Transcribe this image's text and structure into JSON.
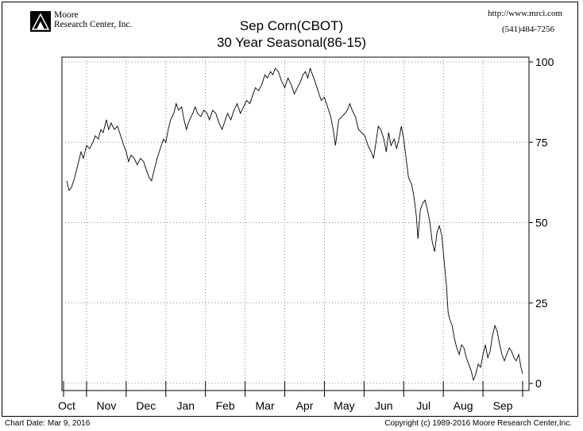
{
  "header": {
    "logo_line1": "Moore",
    "logo_line2": "Research Center, Inc.",
    "url": "http://www.mrci.com",
    "phone": "(541)484-7256"
  },
  "footer": {
    "chart_date": "Chart Date: Mar 9, 2016",
    "copyright": "Copyright (c) 1989-2016 Moore Research Center,Inc."
  },
  "chart_data": {
    "type": "line",
    "title": "Sep Corn(CBOT)",
    "subtitle": "30 Year Seasonal(86-15)",
    "ylim": [
      0,
      100
    ],
    "yticks": [
      0,
      25,
      50,
      75,
      100
    ],
    "grid": true,
    "x_axis": [
      "Oct",
      "Nov",
      "Dec",
      "Jan",
      "Feb",
      "Mar",
      "Apr",
      "May",
      "Jun",
      "Jul",
      "Aug",
      "Sep"
    ],
    "x_range": [
      0,
      11.5
    ],
    "series": [
      {
        "points": [
          [
            0.0,
            63
          ],
          [
            0.06,
            60
          ],
          [
            0.12,
            61
          ],
          [
            0.2,
            64
          ],
          [
            0.28,
            68
          ],
          [
            0.36,
            72
          ],
          [
            0.42,
            70
          ],
          [
            0.5,
            74
          ],
          [
            0.58,
            73
          ],
          [
            0.66,
            75
          ],
          [
            0.72,
            77
          ],
          [
            0.8,
            76
          ],
          [
            0.86,
            79
          ],
          [
            0.92,
            78
          ],
          [
            1.0,
            82
          ],
          [
            1.06,
            79
          ],
          [
            1.12,
            81
          ],
          [
            1.2,
            79
          ],
          [
            1.28,
            80
          ],
          [
            1.36,
            77
          ],
          [
            1.44,
            74
          ],
          [
            1.5,
            72
          ],
          [
            1.56,
            69
          ],
          [
            1.62,
            71
          ],
          [
            1.7,
            70
          ],
          [
            1.78,
            68
          ],
          [
            1.86,
            70
          ],
          [
            1.94,
            69
          ],
          [
            2.02,
            66
          ],
          [
            2.08,
            64
          ],
          [
            2.14,
            63
          ],
          [
            2.2,
            66
          ],
          [
            2.28,
            70
          ],
          [
            2.36,
            73
          ],
          [
            2.44,
            76
          ],
          [
            2.5,
            75
          ],
          [
            2.56,
            79
          ],
          [
            2.62,
            82
          ],
          [
            2.7,
            84
          ],
          [
            2.76,
            87
          ],
          [
            2.82,
            85
          ],
          [
            2.9,
            86
          ],
          [
            2.96,
            82
          ],
          [
            3.02,
            79
          ],
          [
            3.1,
            82
          ],
          [
            3.18,
            84
          ],
          [
            3.24,
            86
          ],
          [
            3.3,
            84
          ],
          [
            3.38,
            83
          ],
          [
            3.46,
            85
          ],
          [
            3.54,
            84
          ],
          [
            3.6,
            82
          ],
          [
            3.68,
            85
          ],
          [
            3.76,
            84
          ],
          [
            3.84,
            81
          ],
          [
            3.92,
            79
          ],
          [
            4.0,
            82
          ],
          [
            4.06,
            84
          ],
          [
            4.14,
            82
          ],
          [
            4.22,
            85
          ],
          [
            4.3,
            87
          ],
          [
            4.38,
            84
          ],
          [
            4.46,
            86
          ],
          [
            4.54,
            88
          ],
          [
            4.62,
            87
          ],
          [
            4.7,
            90
          ],
          [
            4.76,
            92
          ],
          [
            4.84,
            91
          ],
          [
            4.92,
            93
          ],
          [
            5.0,
            96
          ],
          [
            5.06,
            95
          ],
          [
            5.14,
            97
          ],
          [
            5.2,
            96
          ],
          [
            5.26,
            98
          ],
          [
            5.34,
            97
          ],
          [
            5.42,
            94
          ],
          [
            5.5,
            92
          ],
          [
            5.58,
            95
          ],
          [
            5.66,
            93
          ],
          [
            5.74,
            90
          ],
          [
            5.82,
            92
          ],
          [
            5.9,
            94
          ],
          [
            5.96,
            96
          ],
          [
            6.02,
            97
          ],
          [
            6.08,
            95
          ],
          [
            6.14,
            98
          ],
          [
            6.2,
            96
          ],
          [
            6.26,
            94
          ],
          [
            6.34,
            91
          ],
          [
            6.42,
            88
          ],
          [
            6.5,
            89
          ],
          [
            6.58,
            86
          ],
          [
            6.66,
            83
          ],
          [
            6.72,
            79
          ],
          [
            6.78,
            74
          ],
          [
            6.86,
            82
          ],
          [
            6.94,
            83
          ],
          [
            7.02,
            84
          ],
          [
            7.08,
            85
          ],
          [
            7.14,
            87
          ],
          [
            7.2,
            85
          ],
          [
            7.28,
            83
          ],
          [
            7.36,
            79
          ],
          [
            7.44,
            78
          ],
          [
            7.52,
            77
          ],
          [
            7.6,
            74
          ],
          [
            7.68,
            72
          ],
          [
            7.74,
            70
          ],
          [
            7.8,
            75
          ],
          [
            7.86,
            80
          ],
          [
            7.92,
            79
          ],
          [
            8.0,
            76
          ],
          [
            8.06,
            72
          ],
          [
            8.12,
            78
          ],
          [
            8.18,
            74
          ],
          [
            8.26,
            76
          ],
          [
            8.32,
            73
          ],
          [
            8.38,
            76
          ],
          [
            8.44,
            80
          ],
          [
            8.5,
            76
          ],
          [
            8.56,
            70
          ],
          [
            8.62,
            64
          ],
          [
            8.7,
            62
          ],
          [
            8.76,
            58
          ],
          [
            8.82,
            52
          ],
          [
            8.86,
            45
          ],
          [
            8.92,
            54
          ],
          [
            8.98,
            56
          ],
          [
            9.04,
            57
          ],
          [
            9.1,
            54
          ],
          [
            9.16,
            50
          ],
          [
            9.22,
            44
          ],
          [
            9.28,
            41
          ],
          [
            9.34,
            47
          ],
          [
            9.4,
            49
          ],
          [
            9.46,
            46
          ],
          [
            9.52,
            38
          ],
          [
            9.58,
            30
          ],
          [
            9.62,
            22
          ],
          [
            9.66,
            20
          ],
          [
            9.72,
            18
          ],
          [
            9.78,
            14
          ],
          [
            9.84,
            11
          ],
          [
            9.9,
            9
          ],
          [
            9.96,
            12
          ],
          [
            10.02,
            11
          ],
          [
            10.08,
            8
          ],
          [
            10.14,
            6
          ],
          [
            10.2,
            4
          ],
          [
            10.26,
            1
          ],
          [
            10.32,
            3
          ],
          [
            10.38,
            6
          ],
          [
            10.44,
            5
          ],
          [
            10.5,
            9
          ],
          [
            10.56,
            12
          ],
          [
            10.62,
            8
          ],
          [
            10.68,
            10
          ],
          [
            10.74,
            15
          ],
          [
            10.8,
            18
          ],
          [
            10.86,
            16
          ],
          [
            10.92,
            12
          ],
          [
            10.98,
            9
          ],
          [
            11.04,
            7
          ],
          [
            11.1,
            9
          ],
          [
            11.16,
            11
          ],
          [
            11.22,
            10
          ],
          [
            11.28,
            8
          ],
          [
            11.34,
            7
          ],
          [
            11.4,
            9
          ],
          [
            11.46,
            5
          ],
          [
            11.5,
            3
          ]
        ]
      }
    ]
  }
}
